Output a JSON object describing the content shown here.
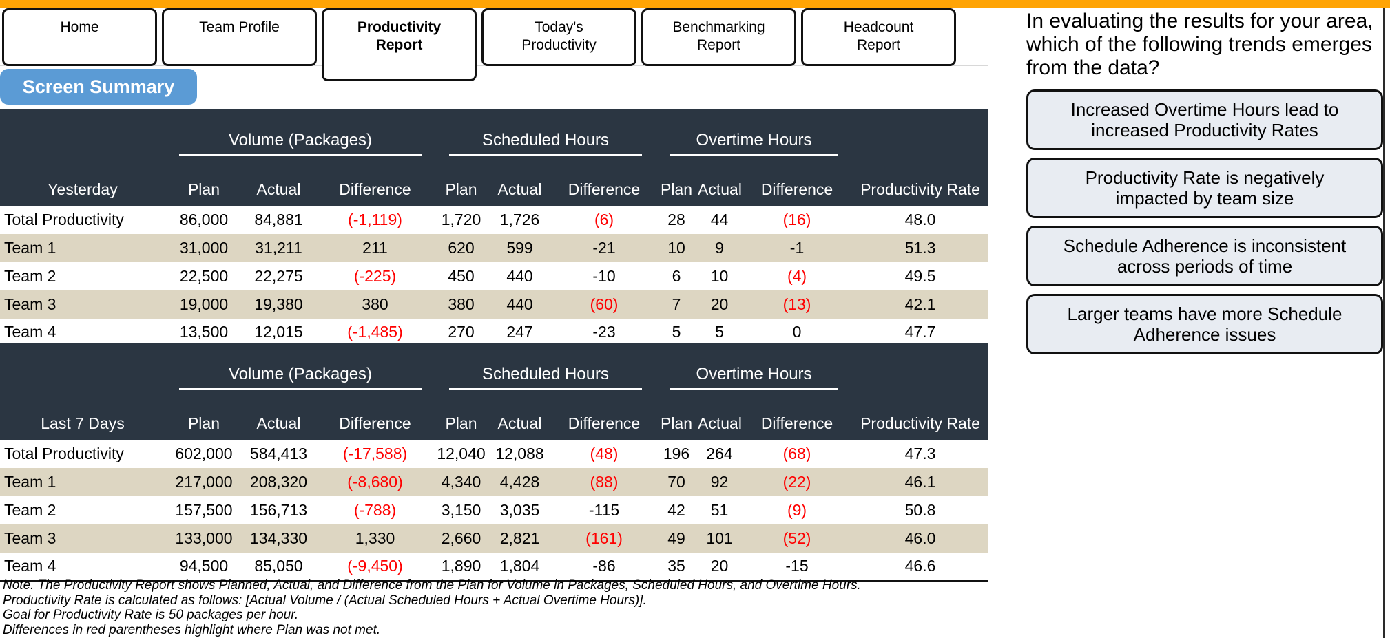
{
  "colors": {
    "accent_orange": "#FFA405",
    "header_dark": "#2B3642",
    "row_tan": "#DDD6C2",
    "negative_red": "#FF0000",
    "summary_blue": "#5B9BD5",
    "option_bg": "#E8ECF2"
  },
  "tabs": [
    {
      "label": "Home",
      "active": false
    },
    {
      "label": "Team Profile",
      "active": false
    },
    {
      "label": "Productivity Report",
      "active": true
    },
    {
      "label": "Today's Productivity",
      "active": false
    },
    {
      "label": "Benchmarking Report",
      "active": false
    },
    {
      "label": "Headcount Report",
      "active": false
    }
  ],
  "screen_summary_label": "Screen Summary",
  "tables": [
    {
      "period_label": "Yesterday",
      "group_headers": [
        "Volume (Packages)",
        "Scheduled Hours",
        "Overtime Hours"
      ],
      "rate_header": "Productivity Rate",
      "sub_headers": [
        "Plan",
        "Actual",
        "Difference",
        "Plan",
        "Actual",
        "Difference",
        "Plan",
        "Actual",
        "Difference"
      ],
      "rows": [
        {
          "label": "Total Productivity",
          "values": [
            "86,000",
            "84,881",
            "(-1,119)",
            "1,720",
            "1,726",
            "(6)",
            "28",
            "44",
            "(16)",
            "48.0"
          ]
        },
        {
          "label": "Team 1",
          "values": [
            "31,000",
            "31,211",
            "211",
            "620",
            "599",
            "-21",
            "10",
            "9",
            "-1",
            "51.3"
          ]
        },
        {
          "label": "Team 2",
          "values": [
            "22,500",
            "22,275",
            "(-225)",
            "450",
            "440",
            "-10",
            "6",
            "10",
            "(4)",
            "49.5"
          ]
        },
        {
          "label": "Team 3",
          "values": [
            "19,000",
            "19,380",
            "380",
            "380",
            "440",
            "(60)",
            "7",
            "20",
            "(13)",
            "42.1"
          ]
        },
        {
          "label": "Team 4",
          "values": [
            "13,500",
            "12,015",
            "(-1,485)",
            "270",
            "247",
            "-23",
            "5",
            "5",
            "0",
            "47.7"
          ]
        }
      ]
    },
    {
      "period_label": "Last 7 Days",
      "group_headers": [
        "Volume (Packages)",
        "Scheduled Hours",
        "Overtime Hours"
      ],
      "rate_header": "Productivity Rate",
      "sub_headers": [
        "Plan",
        "Actual",
        "Difference",
        "Plan",
        "Actual",
        "Difference",
        "Plan",
        "Actual",
        "Difference"
      ],
      "rows": [
        {
          "label": "Total Productivity",
          "values": [
            "602,000",
            "584,413",
            "(-17,588)",
            "12,040",
            "12,088",
            "(48)",
            "196",
            "264",
            "(68)",
            "47.3"
          ]
        },
        {
          "label": "Team 1",
          "values": [
            "217,000",
            "208,320",
            "(-8,680)",
            "4,340",
            "4,428",
            "(88)",
            "70",
            "92",
            "(22)",
            "46.1"
          ]
        },
        {
          "label": "Team 2",
          "values": [
            "157,500",
            "156,713",
            "(-788)",
            "3,150",
            "3,035",
            "-115",
            "42",
            "51",
            "(9)",
            "50.8"
          ]
        },
        {
          "label": "Team 3",
          "values": [
            "133,000",
            "134,330",
            "1,330",
            "2,660",
            "2,821",
            "(161)",
            "49",
            "101",
            "(52)",
            "46.0"
          ]
        },
        {
          "label": "Team 4",
          "values": [
            "94,500",
            "85,050",
            "(-9,450)",
            "1,890",
            "1,804",
            "-86",
            "35",
            "20",
            "-15",
            "46.6"
          ]
        }
      ]
    }
  ],
  "notes": [
    "Note. The Productivity Report shows Planned, Actual, and Difference from the Plan for Volume in Packages, Scheduled Hours, and Overtime Hours.",
    "Productivity Rate is calculated as follows: [Actual Volume / (Actual Scheduled Hours + Actual Overtime Hours)].",
    "Goal for Productivity Rate is 50 packages per hour.",
    "Differences in red parentheses highlight where Plan was not met."
  ],
  "question": {
    "text": "In evaluating the results for your area, which of the following trends emerges from the data?",
    "options": [
      "Increased Overtime Hours lead to increased Productivity Rates",
      "Productivity Rate is negatively impacted by team size",
      "Schedule Adherence is inconsistent across periods of time",
      "Larger teams have more Schedule Adherence issues"
    ]
  }
}
